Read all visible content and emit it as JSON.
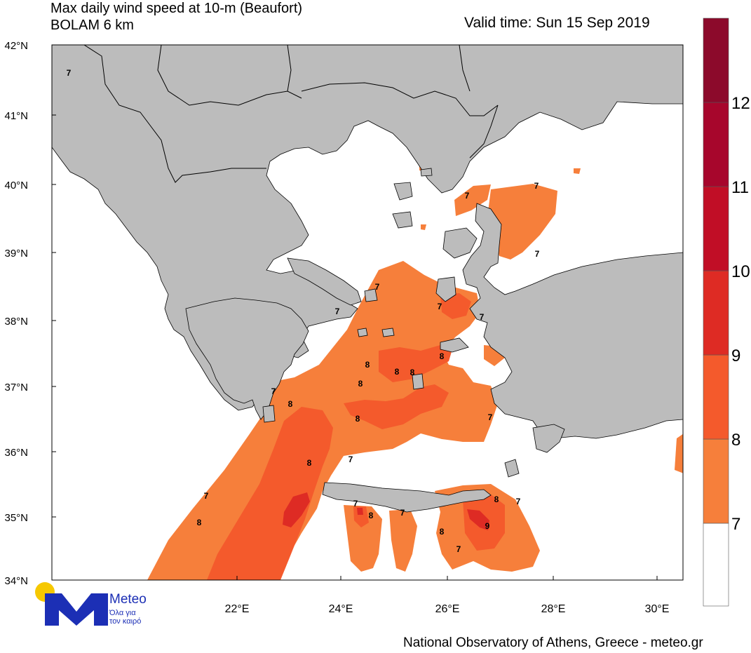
{
  "title_line1": "Max daily wind speed at 10-m (Beaufort)",
  "title_line2": "BOLAM 6 km",
  "valid_time": "Valid time: Sun 15 Sep 2019",
  "credit": "National Observatory of Athens, Greece - meteo.gr",
  "logo": {
    "name": "Meteo",
    "tagline_1": "Όλα για",
    "tagline_2": "τον καιρό"
  },
  "colors": {
    "land": "#bcbcbc",
    "sea": "#ffffff",
    "bf7": "#f67f3b",
    "bf8": "#f45a2c",
    "bf9": "#de2b24",
    "bf10": "#c10e26",
    "bf11": "#a7062c",
    "bf12": "#8c0a2b",
    "brand_blue": "#1c2fb5",
    "brand_sun": "#f6c800"
  },
  "colorbar_labels": [
    "7",
    "8",
    "9",
    "10",
    "11",
    "12"
  ],
  "lat_labels": [
    "42°N",
    "41°N",
    "40°N",
    "39°N",
    "38°N",
    "37°N",
    "36°N",
    "35°N",
    "34°N"
  ],
  "lon_labels": [
    "22°E",
    "24°E",
    "26°E",
    "28°E",
    "30°E"
  ],
  "contour_labels": [
    "7",
    "7",
    "7",
    "7",
    "7",
    "7",
    "7",
    "7",
    "7",
    "7",
    "7",
    "7",
    "7",
    "7",
    "7",
    "7",
    "8",
    "8",
    "8",
    "8",
    "8",
    "8",
    "8",
    "8",
    "8",
    "8",
    "8",
    "8",
    "9"
  ]
}
